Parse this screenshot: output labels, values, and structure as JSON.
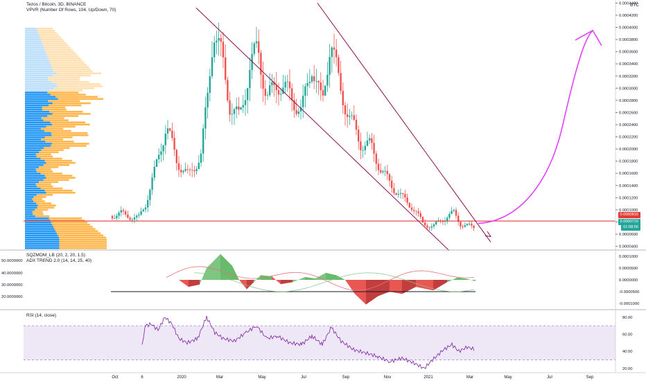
{
  "header": {
    "symbol": "Tezos / Bitcoin, 3D, BINANCE",
    "volume_profile": "VPVR (Number Of Rows, 104, Up/Down, 70)",
    "squeeze": "SQZMOM_LB (20, 2, 20, 1.5)",
    "adx": "ADX TREND 2.0 (14, 14, 25, 40)",
    "rsi": "RSI (14, close)",
    "currency": "BTC"
  },
  "price_labels": {
    "hline": "0.0000816",
    "last": "0.0000710",
    "timer": "01:08:56"
  },
  "colors": {
    "up": "#26a69a",
    "down": "#ef5350",
    "channel": "#880e4f",
    "projection": "#e040fb",
    "support": "#e53935",
    "vp_buy": "#2196f3",
    "vp_sell": "#ffb74d",
    "sqz_green": "#4caf50",
    "sqz_red": "#e53935",
    "rsi": "#7e57c2",
    "rsi_band": "#ede7f6"
  },
  "chart_data": [
    {
      "type": "candlestick",
      "title": "Tezos / Bitcoin, 3D, BINANCE",
      "x_ticks": [
        "Oct",
        "6",
        "2020",
        "Mar",
        "May",
        "Jul",
        "Sep",
        "Nov",
        "2021",
        "Mar",
        "May",
        "Jul",
        "Sep"
      ],
      "y_ticks": [
        "0.0004400",
        "0.0004200",
        "0.0004000",
        "0.0003800",
        "0.0003600",
        "0.0003400",
        "0.0003200",
        "0.0003000",
        "0.0002800",
        "0.0002600",
        "0.0002400",
        "0.0002200",
        "0.0002000",
        "0.0001800",
        "0.0001600",
        "0.0001400",
        "0.0001200",
        "0.0001000",
        "0.0000800",
        "0.0000600",
        "0.0000400"
      ],
      "ylim": [
        3.5e-05,
        0.000445
      ],
      "key_prices": [
        {
          "label": "Oct",
          "price": 9.4e-05
        },
        {
          "label": "6",
          "price": 8.7e-05
        },
        {
          "label": "2020",
          "price": 0.000175
        },
        {
          "label": "Mar",
          "price": 0.00036
        },
        {
          "label": "May",
          "price": 0.00029
        },
        {
          "label": "Jul",
          "price": 0.000285
        },
        {
          "label": "Sep",
          "price": 0.00021
        },
        {
          "label": "Nov",
          "price": 0.00012
        },
        {
          "label": "2021",
          "price": 7.5e-05
        },
        {
          "label": "Mar",
          "price": 7.1e-05
        }
      ],
      "peaks": [
        0.000408,
        0.000385
      ],
      "horizontal_level": 8.16e-05,
      "last_price": 7.1e-05,
      "projection_target": 0.000395
    },
    {
      "type": "area",
      "title": "SQZMOM_LB (20, 2, 20, 1.5)",
      "subtitle": "ADX TREND 2.0 (14, 14, 25, 40)",
      "left_ticks": [
        "50.0000000",
        "40.0000000",
        "30.0000000",
        "20.0000000"
      ],
      "right_ticks": [
        "0.0001000",
        "0.0000500",
        "0.0000000",
        "-0.0000500",
        "-0.0001000"
      ],
      "ylim": [
        -0.000115,
        0.000115
      ],
      "momentum_peak": 0.00011,
      "momentum_trough": -0.000105,
      "adx_reference": 25
    },
    {
      "type": "line",
      "title": "RSI (14, close)",
      "y_ticks": [
        "80.00",
        "60.00",
        "40.00",
        "20.00"
      ],
      "ylim": [
        15,
        88
      ],
      "band": [
        30,
        70
      ],
      "last_value": 42,
      "x_ticks": [
        "Oct",
        "6",
        "2020",
        "Mar",
        "May",
        "Jul",
        "Sep",
        "Nov",
        "2021",
        "Mar",
        "May",
        "Jul",
        "Sep"
      ]
    }
  ]
}
